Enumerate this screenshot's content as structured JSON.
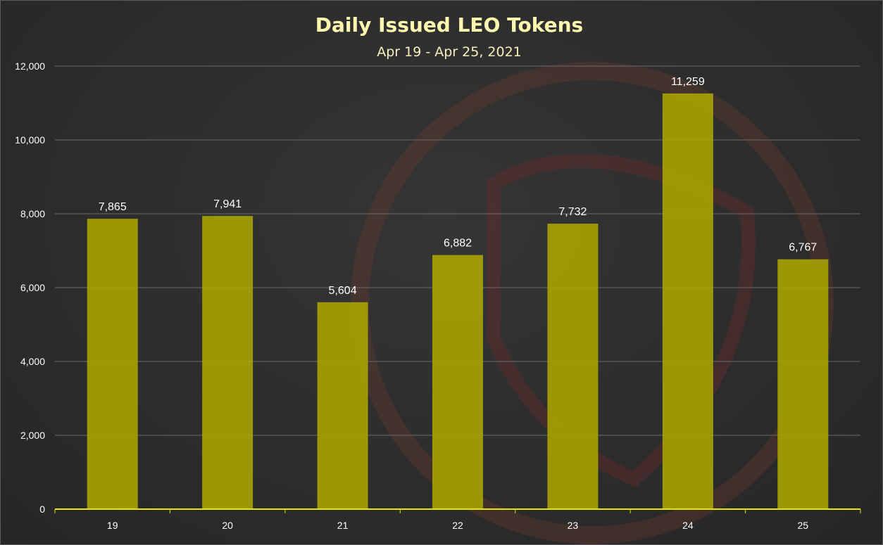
{
  "chart_data": {
    "type": "bar",
    "title": "Daily Issued LEO Tokens",
    "subtitle": "Apr 19 - Apr 25, 2021",
    "categories": [
      "19",
      "20",
      "21",
      "22",
      "23",
      "24",
      "25"
    ],
    "values": [
      7865,
      7941,
      5604,
      6882,
      7732,
      11259,
      6767
    ],
    "value_labels": [
      "7,865",
      "7,941",
      "5,604",
      "6,882",
      "7,732",
      "11,259",
      "6,767"
    ],
    "xlabel": "",
    "ylabel": "",
    "ylim": [
      0,
      12000
    ],
    "yticks": [
      0,
      2000,
      4000,
      6000,
      8000,
      10000,
      12000
    ],
    "ytick_labels": [
      "0",
      "2,000",
      "4,000",
      "6,000",
      "8,000",
      "10,000",
      "12,000"
    ],
    "grid": true,
    "legend": "none",
    "colors": {
      "bar": "#a8a300",
      "axis": "#e6e600",
      "title": "#fff9b0",
      "background": "#2c2c2c"
    }
  }
}
